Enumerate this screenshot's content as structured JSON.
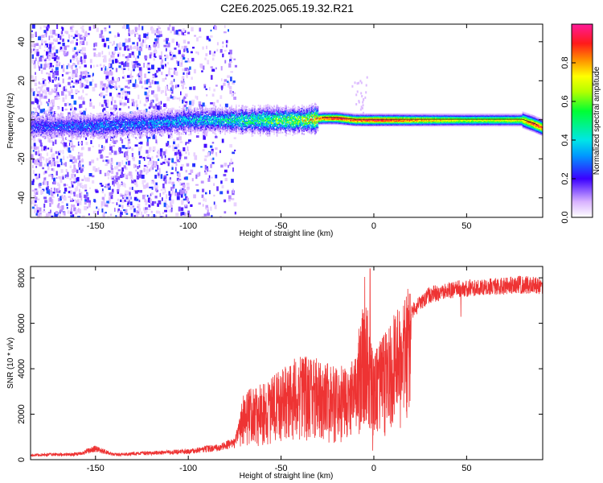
{
  "title": "C2E6.2025.065.19.32.R21",
  "chart_data": [
    {
      "type": "heatmap",
      "xlabel": "Height of straight line (km)",
      "ylabel": "Frequency (Hz)",
      "xlim": [
        -185,
        91
      ],
      "ylim": [
        -50,
        49
      ],
      "xticks": [
        -150,
        -100,
        -50,
        0,
        50
      ],
      "yticks": [
        -40,
        -20,
        0,
        20,
        40
      ],
      "grid": false,
      "colorbar": {
        "label": "Normalized spectral amplitude",
        "range": [
          0,
          1
        ],
        "ticks": [
          0.0,
          0.2,
          0.4,
          0.6,
          0.8
        ]
      },
      "ridge": {
        "x": [
          -185,
          -150,
          -130,
          -110,
          -100,
          -80,
          -60,
          -40,
          -27,
          -20,
          -10,
          0,
          20,
          50,
          80,
          86,
          91
        ],
        "frequency": [
          -3,
          -3,
          -2,
          -1,
          0,
          0,
          0,
          0,
          1,
          1,
          0,
          0,
          0,
          0,
          0,
          -2,
          -4
        ],
        "amplitude": [
          0.25,
          0.3,
          0.32,
          0.35,
          0.38,
          0.45,
          0.55,
          0.65,
          0.9,
          0.95,
          0.9,
          0.95,
          0.85,
          0.7,
          0.75,
          0.9,
          0.9
        ]
      }
    },
    {
      "type": "line",
      "xlabel": "Height of straight line (km)",
      "ylabel": "SNR (10 * v/v)",
      "xlim": [
        -185,
        91
      ],
      "ylim": [
        0,
        8500
      ],
      "xticks": [
        -150,
        -100,
        -50,
        0,
        50
      ],
      "yticks": [
        0,
        2000,
        4000,
        6000,
        8000
      ],
      "grid": false,
      "series": [
        {
          "color": "#ee3333",
          "envelope_x": [
            -185,
            -160,
            -150,
            -140,
            -100,
            -85,
            -75,
            -70,
            -60,
            -50,
            -40,
            -30,
            -20,
            -10,
            -5,
            -3,
            0,
            10,
            20,
            30,
            40,
            50,
            60,
            70,
            80,
            91
          ],
          "envelope_y": [
            250,
            300,
            600,
            280,
            450,
            650,
            900,
            2500,
            2800,
            3300,
            3900,
            3700,
            3400,
            3700,
            6800,
            5200,
            3900,
            5200,
            6600,
            7400,
            7600,
            7700,
            7750,
            7800,
            7850,
            7800
          ]
        }
      ]
    }
  ]
}
